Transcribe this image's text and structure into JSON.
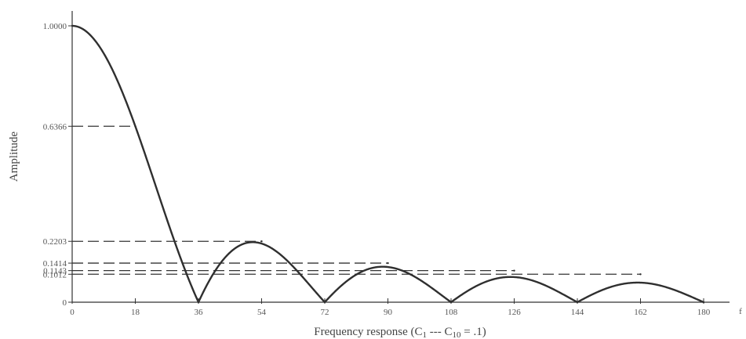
{
  "chart_data": {
    "type": "line",
    "title": "",
    "xlabel": "Frequency response (C₁ --- C₁₀ = .1)",
    "xlabel_parts": {
      "before": "Frequency response (C",
      "sub1": "1",
      "middle": " --- C",
      "sub2": "10",
      "after": " = .1)"
    },
    "ylabel": "Amplitude",
    "x_unit_label": "f",
    "xlim": [
      0,
      180
    ],
    "ylim": [
      0,
      1
    ],
    "x_ticks": [
      0,
      18,
      36,
      54,
      72,
      90,
      108,
      126,
      144,
      162,
      180
    ],
    "x_tick_labels": [
      "0",
      "18",
      "36",
      "54",
      "72",
      "90",
      "108",
      "126",
      "144",
      "162",
      "180"
    ],
    "y_ticks": [
      {
        "value": 0,
        "label": "0"
      },
      {
        "value": 0.1012,
        "label": "0.1012"
      },
      {
        "value": 0.1143,
        "label": "0.1143"
      },
      {
        "value": 0.1414,
        "label": "0.1414"
      },
      {
        "value": 0.2203,
        "label": "0.2203"
      },
      {
        "value": 0.6366,
        "label": "0.6366"
      },
      {
        "value": 1.0,
        "label": "1.0000"
      }
    ],
    "reference_lines": [
      {
        "y": 0.6366,
        "x_end": 18
      },
      {
        "y": 0.2203,
        "x_end": 54
      },
      {
        "y": 0.1414,
        "x_end": 90
      },
      {
        "y": 0.1143,
        "x_end": 126
      },
      {
        "y": 0.1012,
        "x_end": 162
      }
    ],
    "series": [
      {
        "x": [
          0,
          18,
          36,
          54,
          72,
          90,
          108,
          126,
          144,
          162,
          180
        ],
        "y": [
          1.0,
          0.6366,
          0.0,
          0.2203,
          0.0,
          0.1414,
          0.0,
          0.1143,
          0.0,
          0.1012,
          0.0
        ],
        "shape": "abs-sinc"
      }
    ],
    "grid": false,
    "legend": "none"
  }
}
